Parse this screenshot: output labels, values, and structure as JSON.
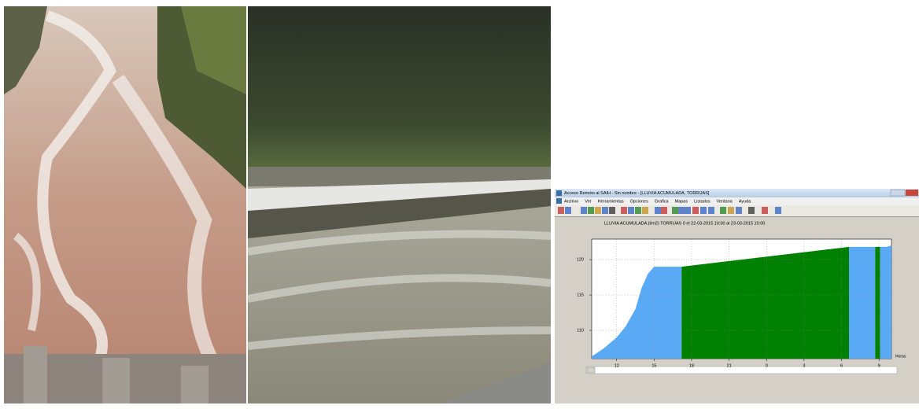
{
  "window": {
    "title": "Acceso Remoto al SAIH - Sin nombre - [LLUVIA ACUMULADA, TORRIJAS]",
    "menu": [
      "Archivo",
      "Ver",
      "Herramientas",
      "Opciones",
      "Grafica",
      "Mapas",
      "Listados",
      "Ventana",
      "Ayuda"
    ]
  },
  "chart_data": {
    "type": "area",
    "title": "LLUVIA ACUMULADA (l/m2) TORRIJAS  0 el 22-03-2015 10:00 al 23-03-2015 10:00",
    "x_label": "Horas",
    "xlim": [
      10,
      34
    ],
    "xticks": [
      12,
      15,
      18,
      21,
      {
        "value": 24,
        "label": "0"
      },
      {
        "value": 27,
        "label": "3"
      },
      {
        "value": 30,
        "label": "6"
      },
      {
        "value": 33,
        "label": "9"
      }
    ],
    "ylim": [
      106,
      122.9
    ],
    "yticks": [
      110,
      115,
      120
    ],
    "grid": true,
    "areas": [
      {
        "color": "#5aa9f5",
        "x": [
          10,
          11,
          12,
          12.7,
          13.5,
          14,
          14.5,
          15,
          16,
          17.2
        ],
        "values": [
          106.3,
          107.5,
          109,
          110.5,
          113,
          116,
          118,
          119,
          119,
          119
        ]
      },
      {
        "color": "#008000",
        "x": [
          17.2,
          30.6
        ],
        "values": [
          119,
          121.8
        ]
      },
      {
        "color": "#5aa9f5",
        "x": [
          30.6,
          32.7
        ],
        "values": [
          121.8,
          121.8
        ]
      },
      {
        "color": "#008000",
        "x": [
          32.7,
          33.1
        ],
        "values": [
          121.8,
          121.8
        ]
      },
      {
        "color": "#5aa9f5",
        "x": [
          33.1,
          33.6,
          34
        ],
        "values": [
          121.8,
          121.8,
          122
        ]
      }
    ]
  }
}
